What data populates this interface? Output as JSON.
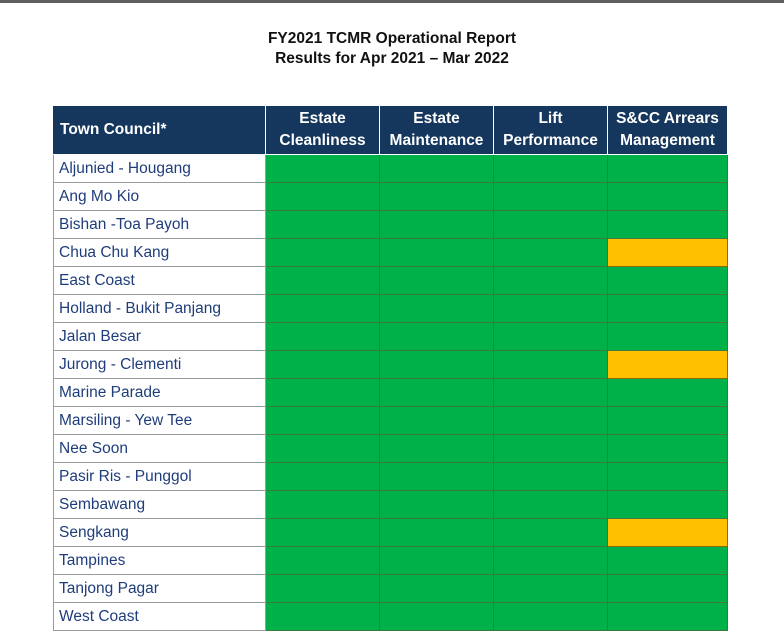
{
  "report": {
    "title": "FY2021 TCMR Operational Report",
    "subtitle": "Results for Apr 2021 – Mar 2022"
  },
  "table": {
    "header": {
      "town_council": "Town Council*",
      "columns": [
        [
          "Estate",
          "Cleanliness"
        ],
        [
          "Estate",
          "Maintenance"
        ],
        [
          "Lift",
          "Performance"
        ],
        [
          "S&CC Arrears",
          "Management"
        ]
      ]
    },
    "rows": [
      {
        "town": "Aljunied - Hougang",
        "ratings": [
          "green",
          "green",
          "green",
          "green"
        ]
      },
      {
        "town": "Ang Mo Kio",
        "ratings": [
          "green",
          "green",
          "green",
          "green"
        ]
      },
      {
        "town": "Bishan -Toa Payoh",
        "ratings": [
          "green",
          "green",
          "green",
          "green"
        ]
      },
      {
        "town": "Chua Chu Kang",
        "ratings": [
          "green",
          "green",
          "green",
          "amber"
        ]
      },
      {
        "town": "East Coast",
        "ratings": [
          "green",
          "green",
          "green",
          "green"
        ]
      },
      {
        "town": "Holland - Bukit Panjang",
        "ratings": [
          "green",
          "green",
          "green",
          "green"
        ]
      },
      {
        "town": "Jalan Besar",
        "ratings": [
          "green",
          "green",
          "green",
          "green"
        ]
      },
      {
        "town": "Jurong - Clementi",
        "ratings": [
          "green",
          "green",
          "green",
          "amber"
        ]
      },
      {
        "town": "Marine Parade",
        "ratings": [
          "green",
          "green",
          "green",
          "green"
        ]
      },
      {
        "town": "Marsiling - Yew Tee",
        "ratings": [
          "green",
          "green",
          "green",
          "green"
        ]
      },
      {
        "town": "Nee Soon",
        "ratings": [
          "green",
          "green",
          "green",
          "green"
        ]
      },
      {
        "town": "Pasir Ris - Punggol",
        "ratings": [
          "green",
          "green",
          "green",
          "green"
        ]
      },
      {
        "town": "Sembawang",
        "ratings": [
          "green",
          "green",
          "green",
          "green"
        ]
      },
      {
        "town": "Sengkang",
        "ratings": [
          "green",
          "green",
          "green",
          "amber"
        ]
      },
      {
        "town": "Tampines",
        "ratings": [
          "green",
          "green",
          "green",
          "green"
        ]
      },
      {
        "town": "Tanjong Pagar",
        "ratings": [
          "green",
          "green",
          "green",
          "green"
        ]
      },
      {
        "town": "West Coast",
        "ratings": [
          "green",
          "green",
          "green",
          "green"
        ]
      }
    ]
  },
  "colors": {
    "header_bg": "#15375e",
    "green": "#00b14a",
    "amber": "#ffc000",
    "town_text": "#1f3d7a"
  }
}
